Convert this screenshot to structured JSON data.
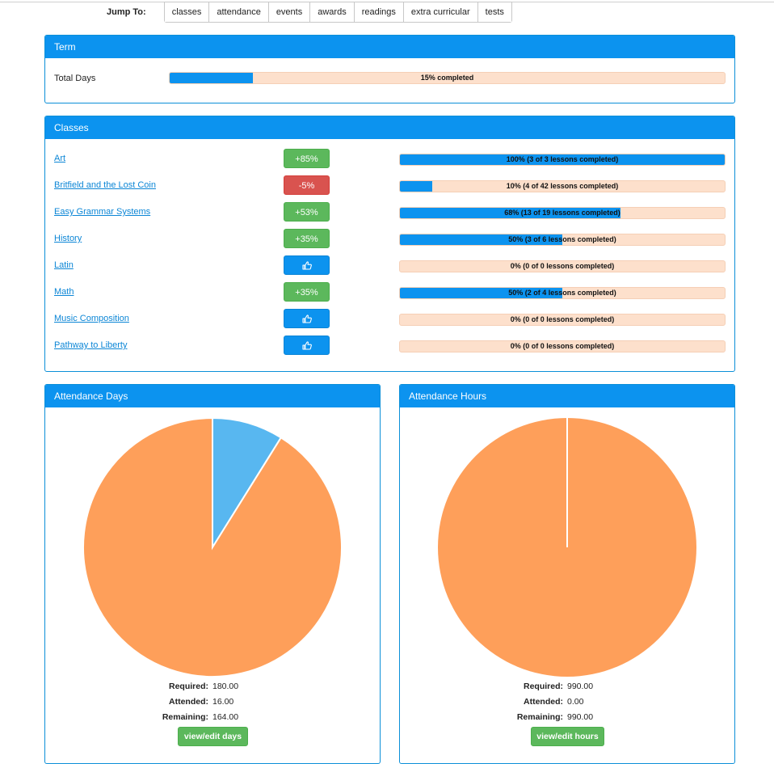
{
  "jump": {
    "label": "Jump To:",
    "tabs": [
      "classes",
      "attendance",
      "events",
      "awards",
      "readings",
      "extra curricular",
      "tests"
    ]
  },
  "term": {
    "title": "Term",
    "row_label": "Total Days",
    "progress": 0.15,
    "progress_text": "15% completed"
  },
  "classes": {
    "title": "Classes",
    "items": [
      {
        "name": "Art",
        "badge": "+85%",
        "badge_style": "green",
        "progress": 1.0,
        "progress_text": "100% (3 of 3 lessons completed)"
      },
      {
        "name": "Britfield and the Lost Coin",
        "badge": "-5%",
        "badge_style": "red",
        "progress": 0.1,
        "progress_text": "10% (4 of 42 lessons completed)"
      },
      {
        "name": "Easy Grammar Systems",
        "badge": "+53%",
        "badge_style": "green",
        "progress": 0.68,
        "progress_text": "68% (13 of 19 lessons completed)"
      },
      {
        "name": "History",
        "badge": "+35%",
        "badge_style": "green",
        "progress": 0.5,
        "progress_text": "50% (3 of 6 lessons completed)"
      },
      {
        "name": "Latin",
        "badge": "",
        "badge_icon": "thumbs-up-icon",
        "badge_style": "blue",
        "progress": 0.0,
        "progress_text": "0% (0 of 0 lessons completed)"
      },
      {
        "name": "Math",
        "badge": "+35%",
        "badge_style": "green",
        "progress": 0.5,
        "progress_text": "50% (2 of 4 lessons completed)"
      },
      {
        "name": "Music Composition",
        "badge": "",
        "badge_icon": "thumbs-up-icon",
        "badge_style": "blue",
        "progress": 0.0,
        "progress_text": "0% (0 of 0 lessons completed)"
      },
      {
        "name": "Pathway to Liberty",
        "badge": "",
        "badge_icon": "thumbs-up-icon",
        "badge_style": "blue",
        "progress": 0.0,
        "progress_text": "0% (0 of 0 lessons completed)"
      }
    ]
  },
  "attendance_days": {
    "title": "Attendance Days",
    "required_label": "Required:",
    "required": "180.00",
    "attended_label": "Attended:",
    "attended": "16.00",
    "remaining_label": "Remaining:",
    "remaining": "164.00",
    "button": "view/edit days"
  },
  "attendance_hours": {
    "title": "Attendance Hours",
    "required_label": "Required:",
    "required": "990.00",
    "attended_label": "Attended:",
    "attended": "0.00",
    "remaining_label": "Remaining:",
    "remaining": "990.00",
    "button": "view/edit hours"
  },
  "chart_data": [
    {
      "type": "pie",
      "categories": [
        "Attended",
        "Remaining"
      ],
      "values": [
        16,
        164
      ],
      "colors": [
        "#58b7f0",
        "#fe9f5a"
      ]
    },
    {
      "type": "pie",
      "categories": [
        "Attended",
        "Remaining"
      ],
      "values": [
        0,
        990
      ],
      "colors": [
        "#58b7f0",
        "#fe9f5a"
      ]
    }
  ],
  "colors": {
    "accent": "#0c93ef",
    "success": "#5cb85c",
    "danger": "#d9534f",
    "bar_track": "#fde0cc"
  }
}
